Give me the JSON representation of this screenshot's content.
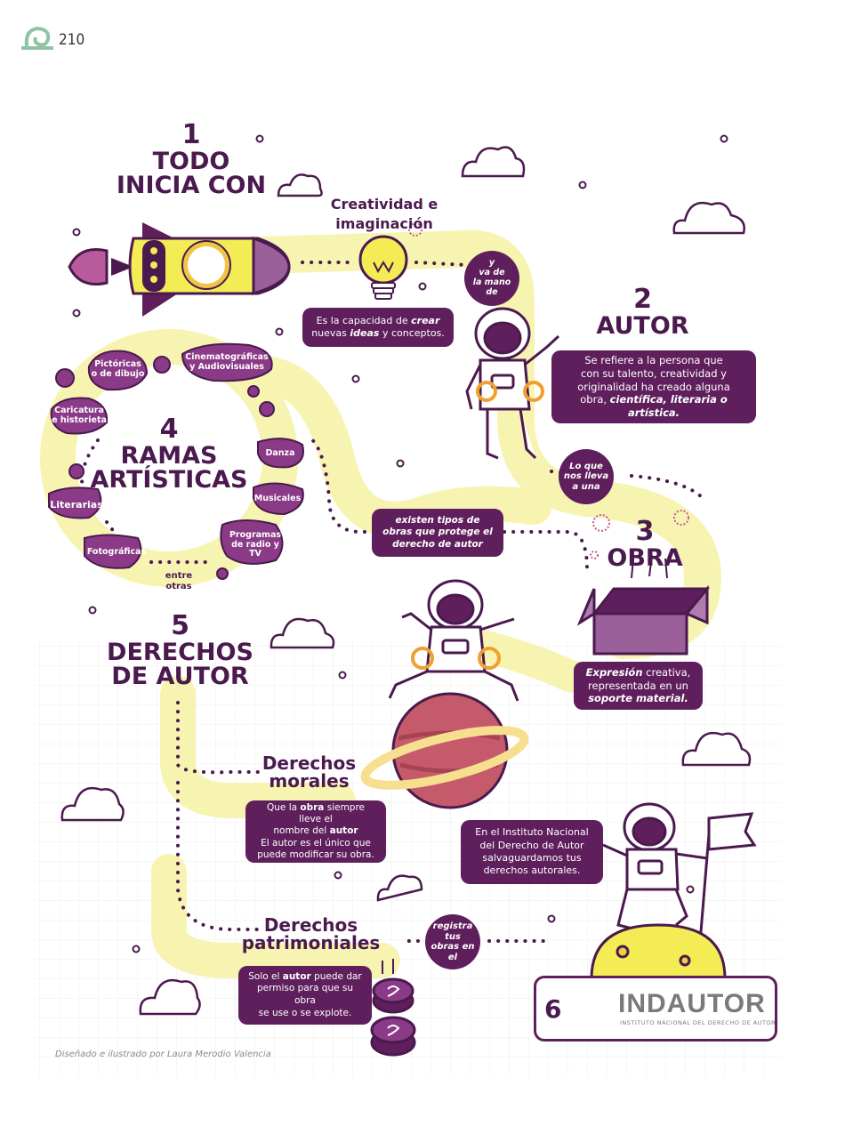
{
  "page": {
    "number": "210"
  },
  "step1": {
    "number": "1",
    "line1": "TODO",
    "line2": "INICIA CON"
  },
  "creativity": {
    "title_line1": "Creatividad e",
    "title_line2": "imaginación",
    "desc_line1_a": "Es la capacidad de ",
    "desc_line1_b": "crear",
    "desc_line2_a": "nuevas ",
    "desc_line2_b": "ideas",
    "desc_line2_c": " y conceptos."
  },
  "connector1": {
    "l1": "y",
    "l2": "va de",
    "l3": "la mano",
    "l4": "de"
  },
  "step2": {
    "number": "2",
    "title": "AUTOR",
    "desc_l1": "Se refiere a la persona que",
    "desc_l2": "con su talento, creatividad y",
    "desc_l3": "originalidad ha creado alguna",
    "desc_l4_a": "obra, ",
    "desc_l4_b": "científica, literaria o artística."
  },
  "connector2": {
    "l1": "Lo que",
    "l2": "nos lleva",
    "l3": "a una"
  },
  "step3": {
    "number": "3",
    "title": "OBRA",
    "desc_l1_a": "Expresión",
    "desc_l1_b": " creativa,",
    "desc_l2": "representada en un",
    "desc_l3": "soporte material."
  },
  "connector3": {
    "l1": "existen tipos de",
    "l2": "obras que protege el",
    "l3": "derecho de autor"
  },
  "step4": {
    "number": "4",
    "line1": "RAMAS",
    "line2": "ARTÍSTICAS",
    "ramas": {
      "pictoricas_1": "Pictóricas",
      "pictoricas_2": "o de dibujo",
      "cine_1": "Cinematográficas",
      "cine_2": "y Audiovisuales",
      "caricatura_1": "Caricatura",
      "caricatura_2": "e historieta",
      "danza": "Danza",
      "musicales": "Musicales",
      "literarias": "Literarias",
      "programas_1": "Programas",
      "programas_2": "de radio y TV",
      "fotograficas": "Fotográficas"
    },
    "entre_1": "entre",
    "entre_2": "otras"
  },
  "step5": {
    "number": "5",
    "line1": "DERECHOS",
    "line2": "DE AUTOR"
  },
  "morales": {
    "title_1": "Derechos",
    "title_2": "morales",
    "d1_a": "Que la ",
    "d1_b": "obra",
    "d1_c": " siempre lleve el",
    "d2_a": "nombre del ",
    "d2_b": "autor",
    "d3": "El autor es el único que",
    "d4": "puede modificar su obra."
  },
  "patrimoniales": {
    "title_1": "Derechos",
    "title_2": "patrimoniales",
    "d1_a": "Solo el ",
    "d1_b": "autor",
    "d1_c": " puede dar",
    "d2": "permiso para que su obra",
    "d3": "se use o se explote."
  },
  "connector4": {
    "l1": "registra tus",
    "l2": "obras en el"
  },
  "instituto": {
    "l1": "En el Instituto Nacional",
    "l2": "del Derecho de Autor",
    "l3": "salvaguardamos tus",
    "l4": "derechos autorales."
  },
  "step6": {
    "number": "6",
    "logo_title": "INDAUTOR",
    "logo_subtitle": "INSTITUTO NACIONAL DEL DERECHO DE AUTOR"
  },
  "credit": "Diseñado e ilustrado por Laura Merodio Valencia",
  "colors": {
    "purple": "#5e1f5c",
    "dark": "#4a1a4e",
    "yellow_path": "#f7f4b2",
    "rocket_yellow": "#f3ec55",
    "planet": "#c45a6a"
  }
}
